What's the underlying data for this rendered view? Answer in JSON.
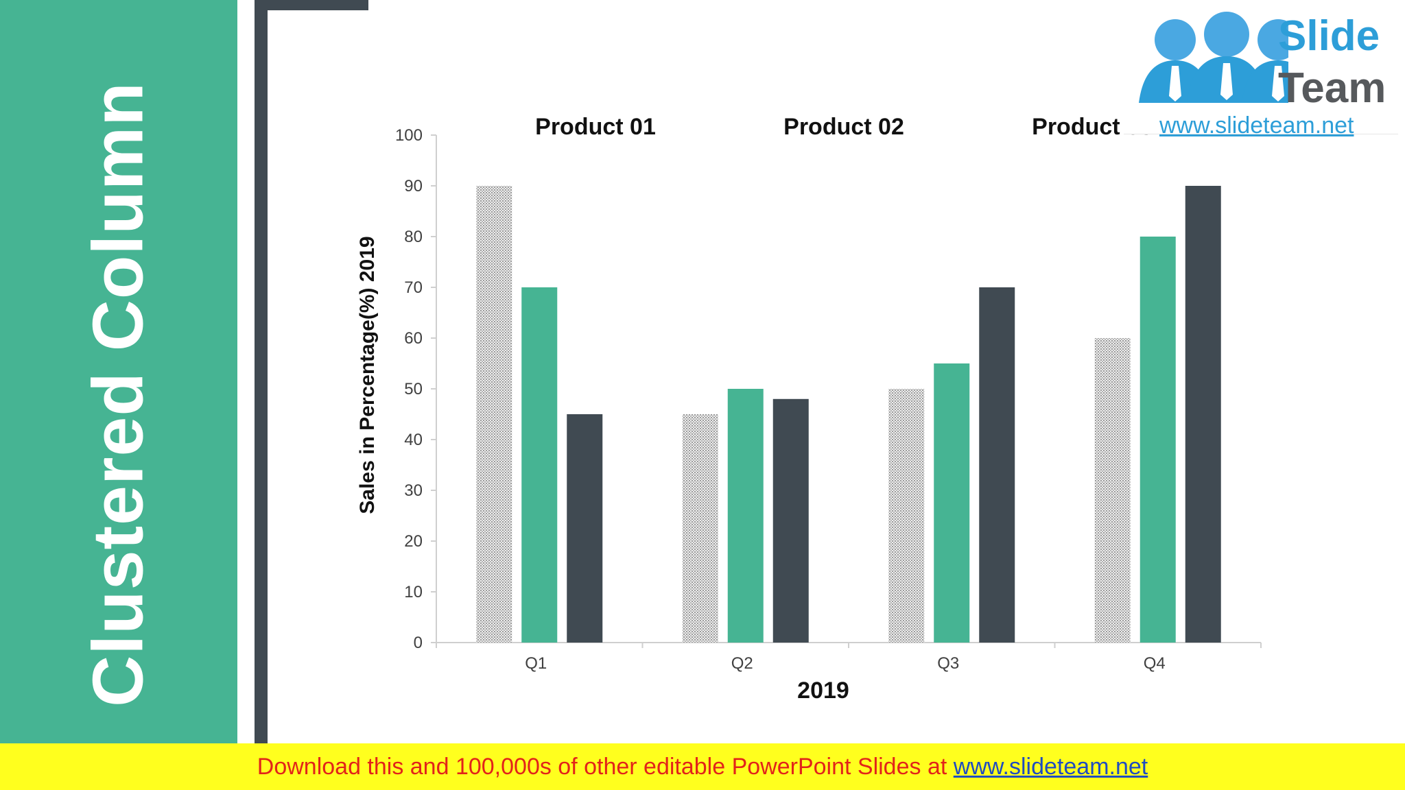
{
  "slide": {
    "title": "Clustered Column"
  },
  "logo": {
    "word1": "Slide",
    "word2": "Team",
    "url": "www.slideteam.net"
  },
  "banner": {
    "text": "Download this and 100,000s of other editable PowerPoint Slides at ",
    "link": "www.slideteam.net"
  },
  "colors": {
    "primary": "#46b493",
    "dark": "#404a52",
    "pattern": "#c8c8c8",
    "banner_bg": "#ffff1e",
    "banner_text": "#e2231a"
  },
  "chart_data": {
    "type": "bar",
    "categories": [
      "Q1",
      "Q2",
      "Q3",
      "Q4"
    ],
    "xlabel": "2019",
    "ylabel": "Sales in Percentage(%) 2019",
    "ylim": [
      0,
      100
    ],
    "yticks": [
      0,
      10,
      20,
      30,
      40,
      50,
      60,
      70,
      80,
      90,
      100
    ],
    "grid": false,
    "legend_position": "top",
    "series": [
      {
        "name": "Product 01",
        "values": [
          90,
          45,
          50,
          60
        ],
        "style": "dotted-pattern"
      },
      {
        "name": "Product 02",
        "values": [
          70,
          50,
          55,
          80
        ],
        "style": "primary"
      },
      {
        "name": "Product 03",
        "values": [
          45,
          48,
          70,
          90
        ],
        "style": "dark"
      }
    ]
  }
}
